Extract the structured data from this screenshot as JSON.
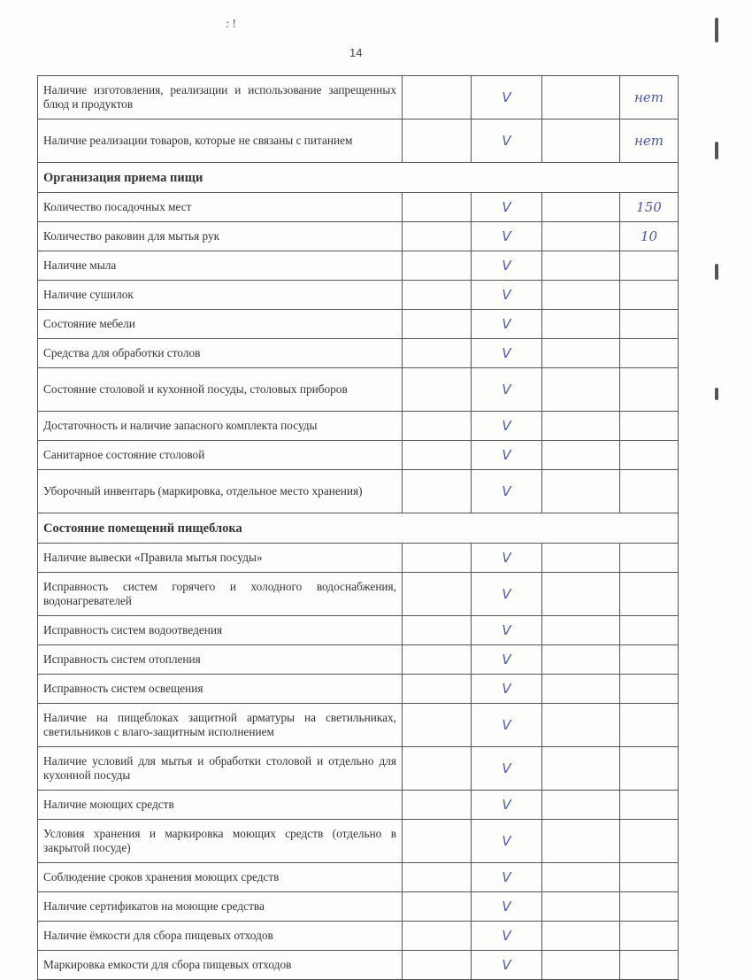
{
  "page_number": "14",
  "sections": [
    {
      "title": null,
      "rows": [
        {
          "label": "Наличие изготовления, реализации и использование запрещенных блюд и продуктов",
          "check": "V",
          "note": "нет"
        },
        {
          "label": "Наличие реализации товаров, которые не связаны с питанием",
          "check": "V",
          "note": "нет"
        }
      ]
    },
    {
      "title": "Организация приема пищи",
      "rows": [
        {
          "label": "Количество посадочных мест",
          "check": "V",
          "note": "150"
        },
        {
          "label": "Количество раковин для мытья рук",
          "check": "V",
          "note": "10"
        },
        {
          "label": "Наличие мыла",
          "check": "V",
          "note": ""
        },
        {
          "label": "Наличие сушилок",
          "check": "V",
          "note": ""
        },
        {
          "label": "Состояние мебели",
          "check": "V",
          "note": ""
        },
        {
          "label": "Средства для обработки столов",
          "check": "V",
          "note": ""
        },
        {
          "label": "Состояние столовой и кухонной посуды, столовых приборов",
          "check": "V",
          "note": ""
        },
        {
          "label": "Достаточность и наличие запасного комплекта посуды",
          "check": "V",
          "note": ""
        },
        {
          "label": "Санитарное состояние столовой",
          "check": "V",
          "note": ""
        },
        {
          "label": "Уборочный инвентарь (маркировка, отдельное место хранения)",
          "check": "V",
          "note": ""
        }
      ]
    },
    {
      "title": "Состояние помещений пищеблока",
      "rows": [
        {
          "label": "Наличие вывески «Правила мытья посуды»",
          "check": "V",
          "note": ""
        },
        {
          "label": "Исправность систем горячего и холодного водоснабжения, водонагревателей",
          "check": "V",
          "note": ""
        },
        {
          "label": "Исправность систем водоотведения",
          "check": "V",
          "note": ""
        },
        {
          "label": "Исправность систем отопления",
          "check": "V",
          "note": ""
        },
        {
          "label": "Исправность систем освещения",
          "check": "V",
          "note": ""
        },
        {
          "label": "Наличие на пищеблоках защитной арматуры на светильниках, светильников с влаго-защитным исполнением",
          "check": "V",
          "note": ""
        },
        {
          "label": "Наличие условий для мытья и обработки столовой и отдельно для кухонной посуды",
          "check": "V",
          "note": ""
        },
        {
          "label": "Наличие моющих средств",
          "check": "V",
          "note": ""
        },
        {
          "label": "Условия хранения и маркировка моющих средств (отдельно в закрытой посуде)",
          "check": "V",
          "note": ""
        },
        {
          "label": "Соблюдение сроков хранения моющих средств",
          "check": "V",
          "note": ""
        },
        {
          "label": "Наличие сертификатов на моющие средства",
          "check": "V",
          "note": ""
        },
        {
          "label": "Наличие ёмкости для сбора пищевых отходов",
          "check": "V",
          "note": ""
        },
        {
          "label": "Маркировка емкости для сбора пищевых отходов",
          "check": "V",
          "note": ""
        }
      ]
    }
  ]
}
